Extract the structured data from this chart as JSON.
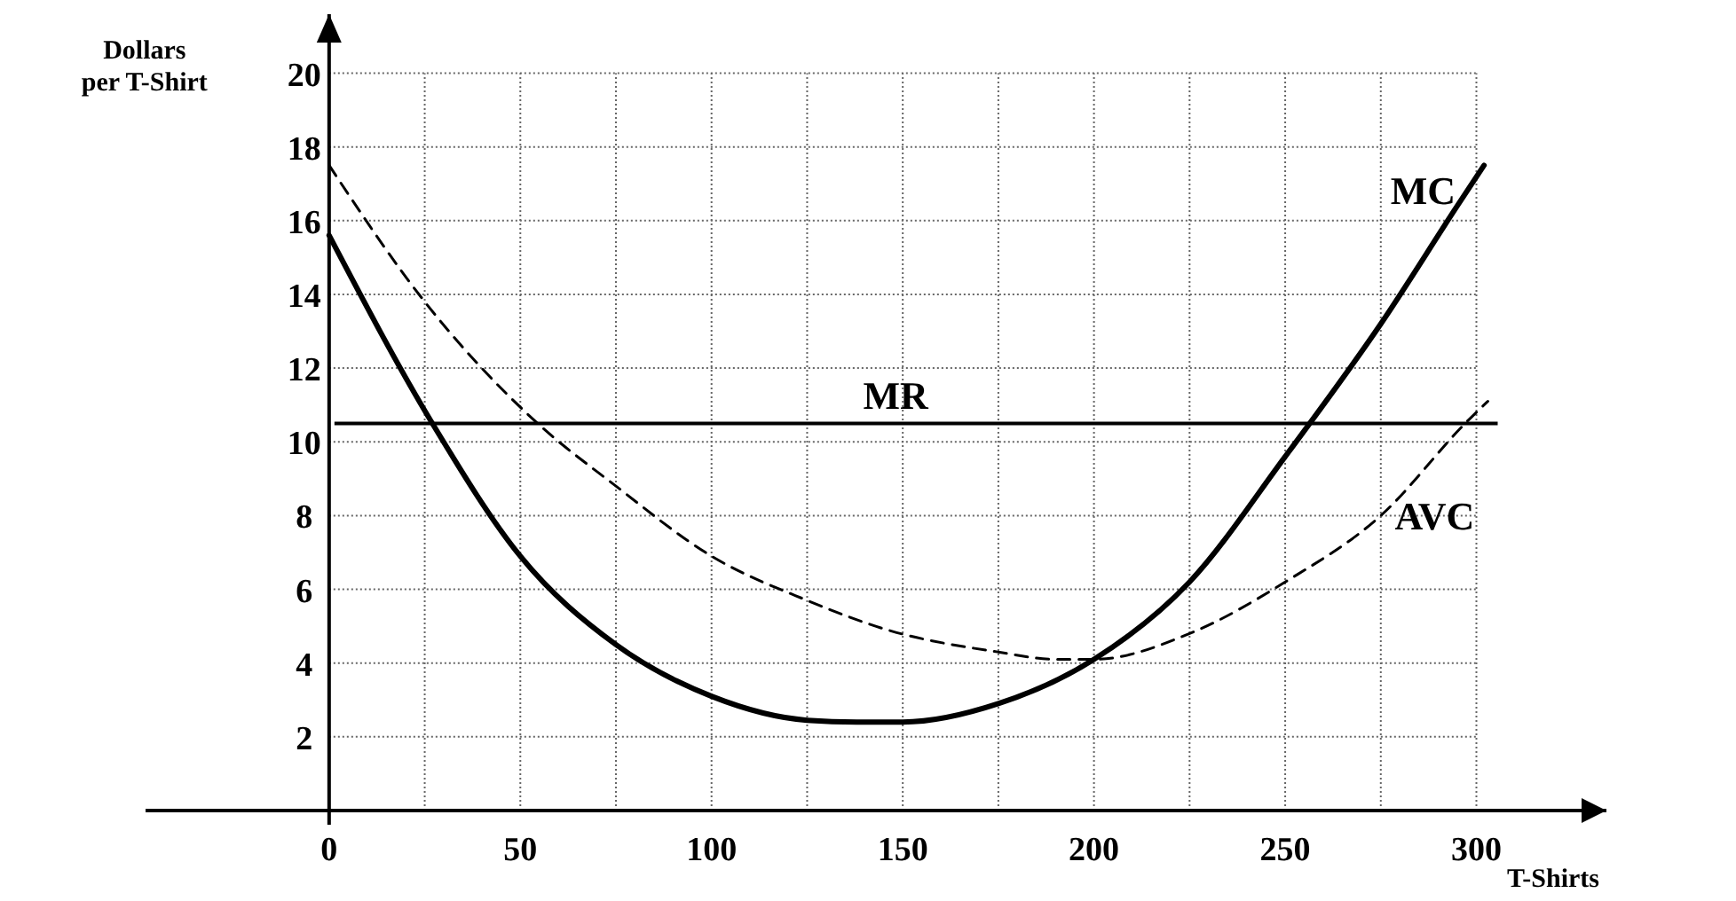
{
  "chart_data": {
    "type": "line",
    "xlabel": "T-Shirts",
    "ylabel": "Dollars per T-Shirt",
    "xlim": [
      -48,
      334
    ],
    "ylim": [
      0,
      21.6
    ],
    "xticks": [
      0,
      {
        "value": 25,
        "label": null
      },
      50,
      {
        "value": 75,
        "label": null
      },
      100,
      {
        "value": 125,
        "label": null
      },
      150,
      {
        "value": 175,
        "label": null
      },
      200,
      {
        "value": 225,
        "label": null
      },
      250,
      {
        "value": 275,
        "label": null
      },
      300
    ],
    "yticks": [
      2,
      4,
      6,
      8,
      10,
      12,
      14,
      16,
      18,
      20
    ],
    "grid": true,
    "marker": "none",
    "ref_lines": [
      {
        "axis": "y",
        "value": 10.5,
        "label": "MR",
        "color": "#000000",
        "line_style": "solid"
      }
    ],
    "series": [
      {
        "name": "MC",
        "color": "#000000",
        "line_style": "solid",
        "x": [
          0,
          27,
          50,
          75,
          100,
          125,
          138,
          150,
          175,
          200,
          225,
          250,
          275,
          295,
          302
        ],
        "values": [
          15.6,
          10.5,
          6.9,
          4.5,
          3.1,
          2.45,
          2.4,
          2.4,
          2.9,
          4.1,
          6.2,
          9.6,
          13.2,
          16.4,
          17.5
        ]
      },
      {
        "name": "AVC",
        "color": "#000000",
        "line_style": "dashed",
        "x": [
          0,
          25,
          54,
          75,
          100,
          125,
          146,
          175,
          190,
          200,
          225,
          250,
          275,
          298,
          303
        ],
        "values": [
          17.5,
          13.8,
          10.55,
          8.8,
          6.9,
          5.7,
          4.9,
          4.3,
          4.1,
          4.1,
          4.8,
          6.2,
          8.0,
          10.6,
          11.1
        ]
      }
    ]
  }
}
